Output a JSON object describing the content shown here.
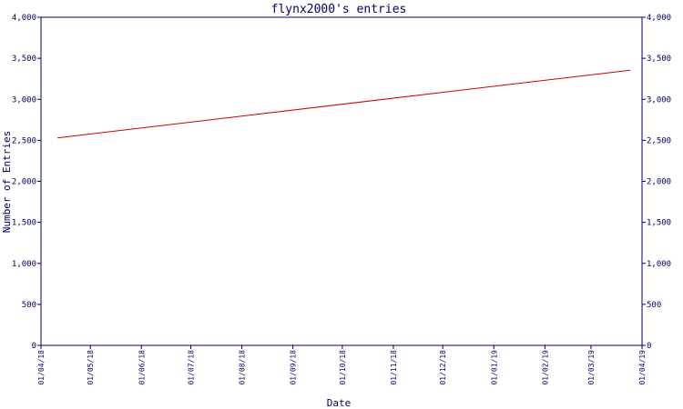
{
  "chart_data": {
    "type": "line",
    "title": "flynx2000's entries",
    "xlabel": "Date",
    "ylabel": "Number of Entries",
    "ylim": [
      0,
      4000
    ],
    "y_ticks": [
      "0",
      "500",
      "1,000",
      "1,500",
      "2,000",
      "2,500",
      "3,000",
      "3,500",
      "4,000"
    ],
    "x_ticks": [
      "01/04/18",
      "01/05/18",
      "01/06/18",
      "01/07/18",
      "01/08/18",
      "01/09/18",
      "01/10/18",
      "01/11/18",
      "01/12/18",
      "01/01/19",
      "01/02/19",
      "01/03/19",
      "01/04/19"
    ],
    "series": [
      {
        "x": [
          "2018-04-11",
          "2019-03-25"
        ],
        "y": [
          2530,
          3355
        ],
        "color": "#cc0000"
      }
    ],
    "grid": false,
    "axis_color": "#000066"
  }
}
